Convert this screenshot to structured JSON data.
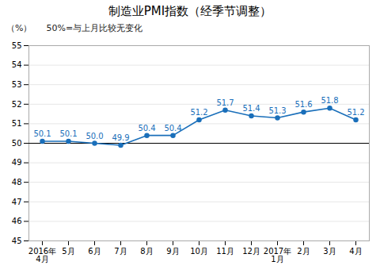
{
  "chart_data": {
    "type": "line",
    "title": "制造业PMI指数（经季节调整）",
    "subtitle": "50%=与上月比较无变化",
    "ylabel": "（%）",
    "categories": [
      "2016年\n4月",
      "5月",
      "6月",
      "7月",
      "8月",
      "9月",
      "10月",
      "11月",
      "12月",
      "2017年\n1月",
      "2月",
      "3月",
      "4月"
    ],
    "values": [
      50.1,
      50.1,
      50.0,
      49.9,
      50.4,
      50.4,
      51.2,
      51.7,
      51.4,
      51.3,
      51.6,
      51.8,
      51.2
    ],
    "value_labels": [
      "50.1",
      "50.1",
      "50.0",
      "49.9",
      "50.4",
      "50.4",
      "51.2",
      "51.7",
      "51.4",
      "51.3",
      "51.6",
      "51.8",
      "51.2"
    ],
    "data_labels": true,
    "color": "#1a6fba",
    "marker": "circle",
    "reference_line": 50,
    "ylim": [
      45,
      55
    ],
    "yticks": [
      45,
      46,
      47,
      48,
      49,
      50,
      51,
      52,
      53,
      54,
      55
    ],
    "grid": true
  }
}
